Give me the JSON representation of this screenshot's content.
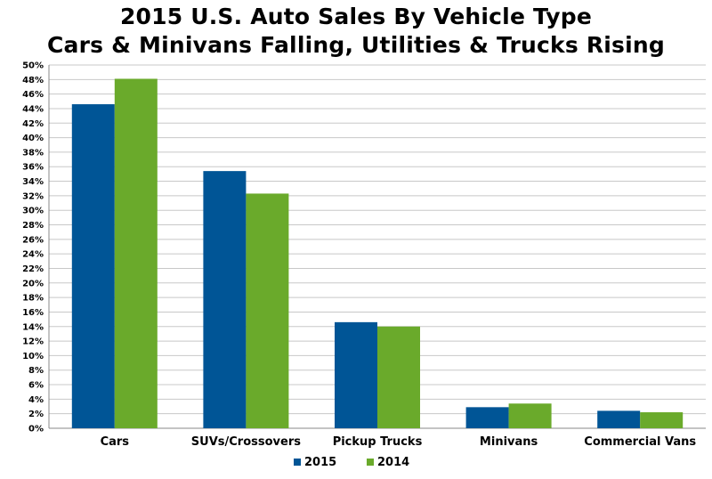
{
  "chart_data": {
    "type": "bar",
    "title": "2015 U.S. Auto Sales By Vehicle Type",
    "subtitle": "Cars & Minivans Falling, Utilities & Trucks Rising",
    "categories": [
      "Cars",
      "SUVs/Crossovers",
      "Pickup Trucks",
      "Minivans",
      "Commercial Vans"
    ],
    "series": [
      {
        "name": "2015",
        "color": "#005596",
        "values": [
          44.6,
          35.4,
          14.6,
          2.9,
          2.4
        ]
      },
      {
        "name": "2014",
        "color": "#6aaa2b",
        "values": [
          48.1,
          32.3,
          14.0,
          3.4,
          2.2
        ]
      }
    ],
    "ylim": [
      0,
      50
    ],
    "ytick_step": 2,
    "ytick_suffix": "%",
    "grid": true,
    "legend": "bottom"
  }
}
